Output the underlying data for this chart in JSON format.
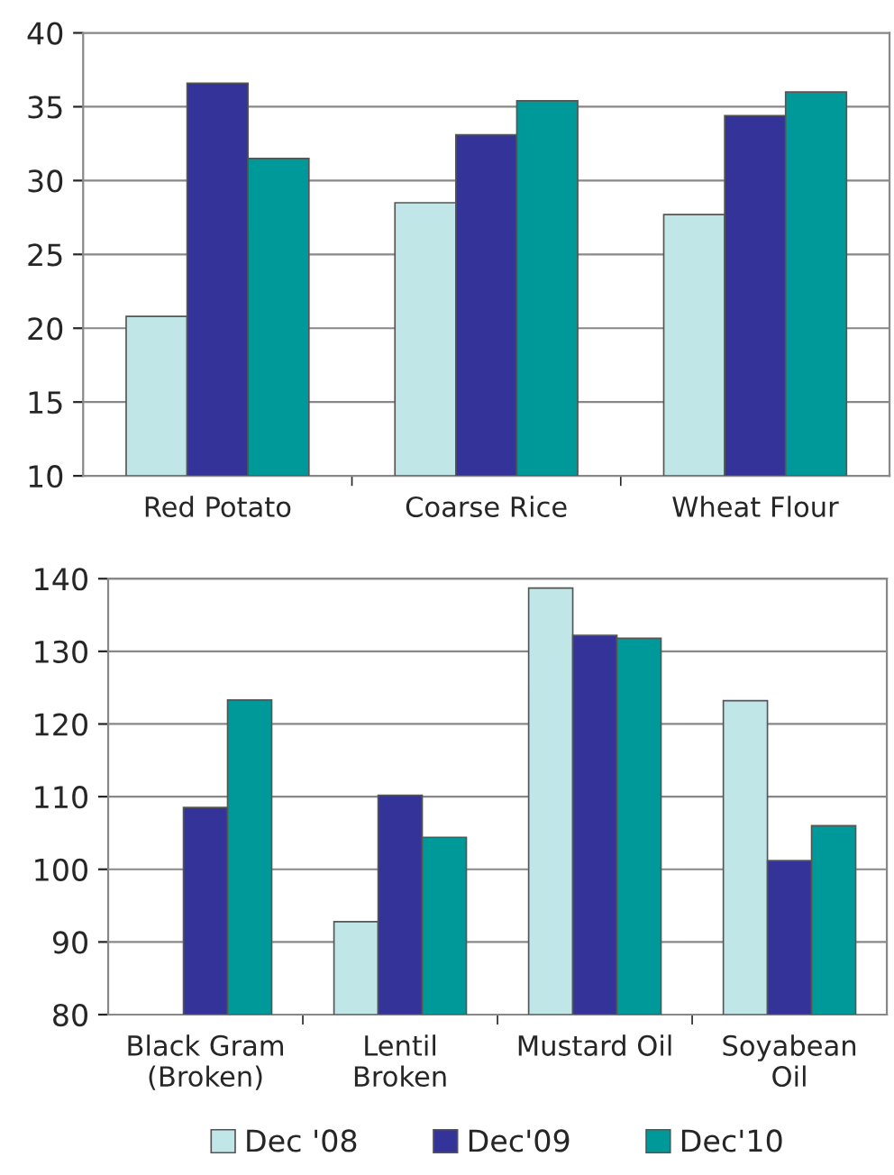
{
  "chart_data": [
    {
      "type": "bar",
      "categories": [
        "Red Potato",
        "Coarse Rice",
        "Wheat Flour"
      ],
      "ylim": [
        10,
        40
      ],
      "yticks": [
        10,
        15,
        20,
        25,
        30,
        35,
        40
      ],
      "grid": "y",
      "series": [
        {
          "color": "#c0e6e8",
          "values": [
            20.8,
            28.5,
            27.7
          ]
        },
        {
          "color": "#333399",
          "values": [
            36.6,
            33.1,
            34.4
          ]
        },
        {
          "color": "#009999",
          "values": [
            31.5,
            35.4,
            36.0
          ]
        }
      ]
    },
    {
      "type": "bar",
      "categories": [
        "Black Gram\n(Broken)",
        "Lentil\nBroken",
        "Mustard Oil",
        "Soyabean\nOil"
      ],
      "ylim": [
        80,
        140
      ],
      "yticks": [
        80,
        90,
        100,
        110,
        120,
        130,
        140
      ],
      "grid": "y",
      "legend": "bottom",
      "series": [
        {
          "name": "Dec '08",
          "color": "#c0e6e8",
          "values": [
            null,
            92.8,
            138.7,
            123.2
          ]
        },
        {
          "name": "Dec'09",
          "color": "#333399",
          "values": [
            108.5,
            110.2,
            132.2,
            101.2
          ]
        },
        {
          "name": "Dec'10",
          "color": "#009999",
          "values": [
            123.3,
            104.4,
            131.8,
            106.0
          ]
        }
      ]
    }
  ]
}
